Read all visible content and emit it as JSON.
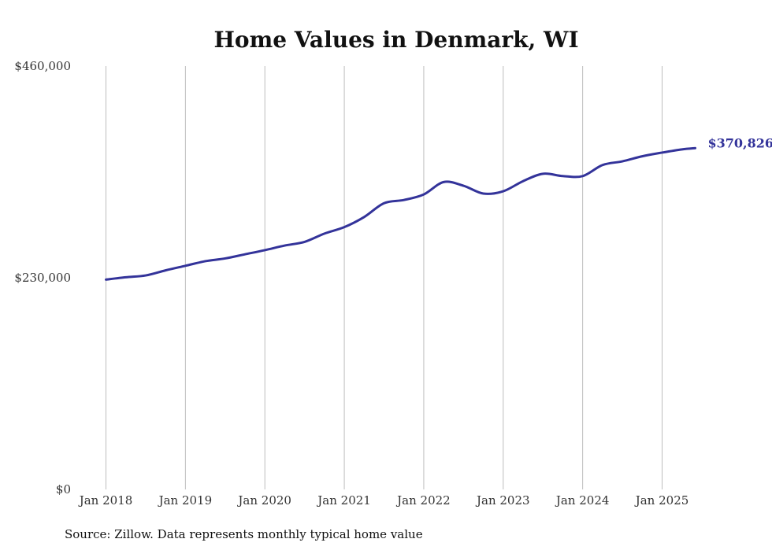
{
  "chart_data": {
    "type": "line",
    "title": "Home Values in Denmark, WI",
    "xlabel": "",
    "ylabel": "",
    "ylim": [
      0,
      460000
    ],
    "y_ticks": [
      {
        "value": 0,
        "label": "$0"
      },
      {
        "value": 230000,
        "label": "$230,000"
      },
      {
        "value": 460000,
        "label": "$460,000"
      }
    ],
    "x_ticks": [
      {
        "date": "2018-01",
        "label": "Jan 2018"
      },
      {
        "date": "2019-01",
        "label": "Jan 2019"
      },
      {
        "date": "2020-01",
        "label": "Jan 2020"
      },
      {
        "date": "2021-01",
        "label": "Jan 2021"
      },
      {
        "date": "2022-01",
        "label": "Jan 2022"
      },
      {
        "date": "2023-01",
        "label": "Jan 2023"
      },
      {
        "date": "2024-01",
        "label": "Jan 2024"
      },
      {
        "date": "2025-01",
        "label": "Jan 2025"
      }
    ],
    "grid": "vertical",
    "series": [
      {
        "color": "#33339a",
        "points": [
          {
            "date": "2018-01",
            "value": 228000
          },
          {
            "date": "2018-04",
            "value": 230500
          },
          {
            "date": "2018-07",
            "value": 232500
          },
          {
            "date": "2018-10",
            "value": 238000
          },
          {
            "date": "2019-01",
            "value": 243000
          },
          {
            "date": "2019-04",
            "value": 248000
          },
          {
            "date": "2019-07",
            "value": 251000
          },
          {
            "date": "2019-10",
            "value": 255500
          },
          {
            "date": "2020-01",
            "value": 260000
          },
          {
            "date": "2020-04",
            "value": 265000
          },
          {
            "date": "2020-07",
            "value": 269000
          },
          {
            "date": "2020-10",
            "value": 278000
          },
          {
            "date": "2021-01",
            "value": 285000
          },
          {
            "date": "2021-04",
            "value": 296000
          },
          {
            "date": "2021-07",
            "value": 311000
          },
          {
            "date": "2021-10",
            "value": 314500
          },
          {
            "date": "2022-01",
            "value": 320500
          },
          {
            "date": "2022-04",
            "value": 334000
          },
          {
            "date": "2022-07",
            "value": 330000
          },
          {
            "date": "2022-10",
            "value": 321500
          },
          {
            "date": "2023-01",
            "value": 324000
          },
          {
            "date": "2023-04",
            "value": 335000
          },
          {
            "date": "2023-07",
            "value": 343000
          },
          {
            "date": "2023-10",
            "value": 340500
          },
          {
            "date": "2024-01",
            "value": 340500
          },
          {
            "date": "2024-04",
            "value": 352500
          },
          {
            "date": "2024-07",
            "value": 356500
          },
          {
            "date": "2024-10",
            "value": 362000
          },
          {
            "date": "2025-01",
            "value": 366000
          },
          {
            "date": "2025-04",
            "value": 369500
          },
          {
            "date": "2025-06",
            "value": 370826
          }
        ]
      }
    ],
    "end_label": "$370,826",
    "source": "Source: Zillow. Data represents monthly typical home value"
  }
}
